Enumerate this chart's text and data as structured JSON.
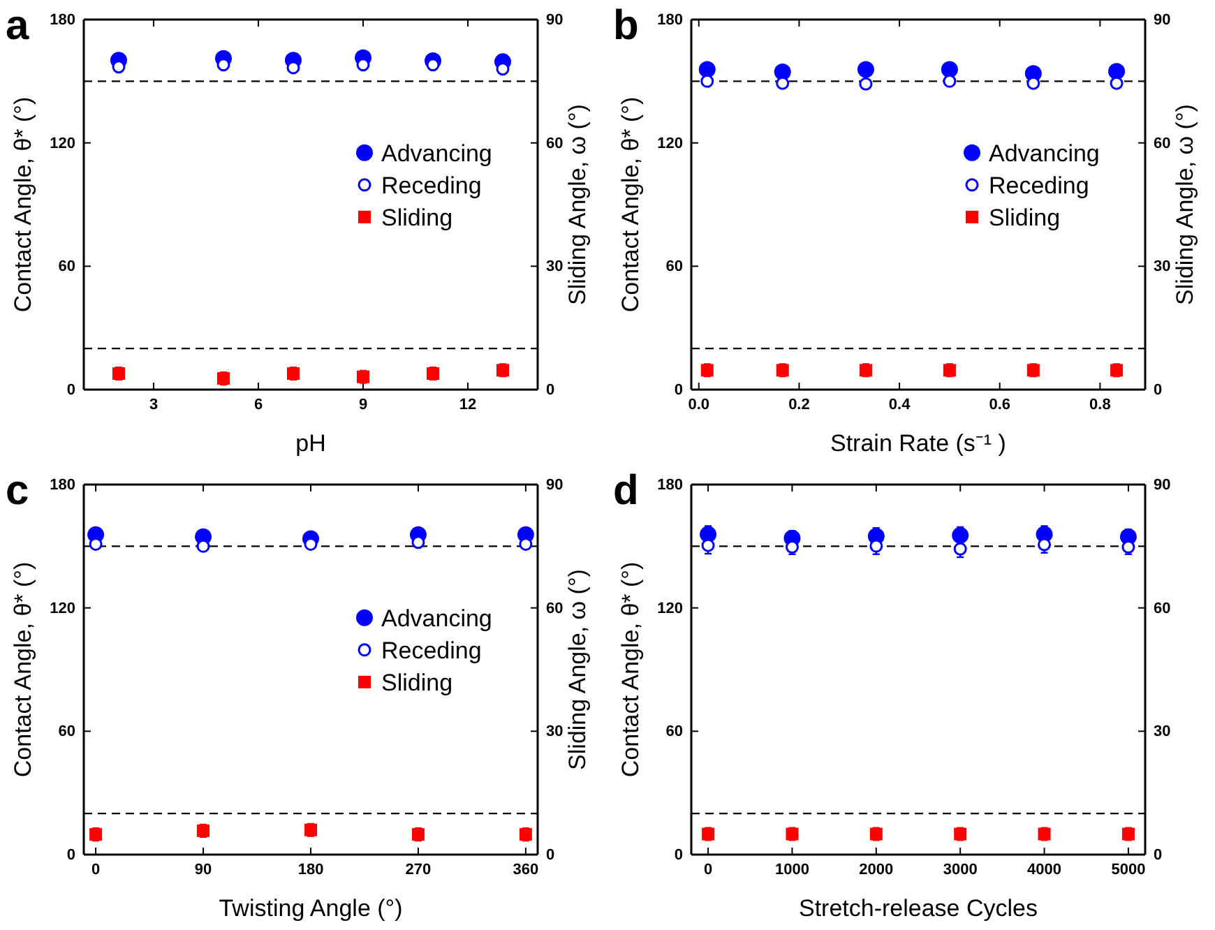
{
  "chart_data": [
    {
      "type": "scatter",
      "title": "a",
      "xlabel": "pH",
      "ylabel": "Contact Angle, θ* (°)",
      "y2label": "Sliding Angle, ω (°)",
      "xlim": [
        1,
        14
      ],
      "xticks": [
        3,
        6,
        9,
        12
      ],
      "ylim": [
        0,
        180
      ],
      "yticks": [
        0,
        60,
        120,
        180
      ],
      "y2lim": [
        0,
        90
      ],
      "y2ticks": [
        0,
        30,
        60,
        90
      ],
      "legend": "right",
      "x": [
        2,
        5,
        7,
        9,
        11,
        13
      ],
      "series": [
        {
          "name": "Advancing",
          "color": "#0000ff",
          "marker": "circle",
          "values": [
            160.2,
            161.1,
            160.2,
            161.4,
            160,
            159.5
          ]
        },
        {
          "name": "Receding",
          "color": "#0000ff",
          "marker": "circle-open",
          "values": [
            157,
            158,
            156.6,
            158,
            158,
            156
          ]
        },
        {
          "name": "Sliding",
          "color": "#ff0000",
          "marker": "square",
          "axis": "y2",
          "values": [
            3.9,
            2.7,
            3.9,
            3.1,
            3.9,
            4.7
          ],
          "errors": [
            1.5,
            1.5,
            1.5,
            1.5,
            1.5,
            1.5
          ]
        }
      ],
      "ref_lines": [
        {
          "axis": "y",
          "value": 150,
          "line_style": "dashed"
        },
        {
          "axis": "y2",
          "value": 10,
          "line_style": "dashed"
        }
      ]
    },
    {
      "type": "scatter",
      "title": "b",
      "xlabel": "Strain Rate (s⁻¹ )",
      "ylabel": "Contact Angle, θ* (°)",
      "y2label": "Sliding Angle, ω (°)",
      "xlim": [
        -0.015,
        0.89
      ],
      "xticks": [
        {
          "value": 0,
          "label": "0.0"
        },
        0.2,
        0.4,
        0.6,
        0.8
      ],
      "ylim": [
        0,
        180
      ],
      "yticks": [
        0,
        60,
        120,
        180
      ],
      "y2lim": [
        0,
        90
      ],
      "y2ticks": [
        0,
        30,
        60,
        90
      ],
      "legend": "right",
      "x": [
        0.0167,
        0.167,
        0.333,
        0.5,
        0.667,
        0.833
      ],
      "series": [
        {
          "name": "Advancing",
          "color": "#0000ff",
          "marker": "circle",
          "values": [
            155.7,
            154.5,
            155.7,
            155.7,
            153.8,
            154.8
          ]
        },
        {
          "name": "Receding",
          "color": "#0000ff",
          "marker": "circle-open",
          "values": [
            150,
            149,
            148.7,
            150,
            149,
            149
          ]
        },
        {
          "name": "Sliding",
          "color": "#ff0000",
          "marker": "square",
          "axis": "y2",
          "values": [
            4.7,
            4.7,
            4.7,
            4.7,
            4.7,
            4.7
          ],
          "errors": [
            1.5,
            1.5,
            1.5,
            1.5,
            1.5,
            1.5
          ]
        }
      ],
      "ref_lines": [
        {
          "axis": "y",
          "value": 150,
          "line_style": "dashed"
        },
        {
          "axis": "y2",
          "value": 10,
          "line_style": "dashed"
        }
      ]
    },
    {
      "type": "scatter",
      "title": "c",
      "xlabel": "Twisting Angle (°)",
      "ylabel": "Contact Angle, θ* (°)",
      "y2label": "Sliding Angle, ω (°)",
      "xlim": [
        -10,
        370
      ],
      "xticks": [
        0,
        90,
        180,
        270,
        360
      ],
      "ylim": [
        0,
        180
      ],
      "yticks": [
        0,
        60,
        120,
        180
      ],
      "y2lim": [
        0,
        90
      ],
      "y2ticks": [
        0,
        30,
        60,
        90
      ],
      "legend": "right",
      "x": [
        0,
        90,
        180,
        270,
        360
      ],
      "series": [
        {
          "name": "Advancing",
          "color": "#0000ff",
          "marker": "circle",
          "values": [
            155.6,
            154.6,
            153.7,
            155.6,
            155.6
          ]
        },
        {
          "name": "Receding",
          "color": "#0000ff",
          "marker": "circle-open",
          "values": [
            151,
            150,
            151,
            151.9,
            151
          ]
        },
        {
          "name": "Sliding",
          "color": "#ff0000",
          "marker": "square",
          "axis": "y2",
          "values": [
            4.9,
            5.8,
            6,
            4.9,
            4.9
          ],
          "errors": [
            1.5,
            1.5,
            1.5,
            1.5,
            1.5
          ]
        }
      ],
      "ref_lines": [
        {
          "axis": "y",
          "value": 150,
          "line_style": "dashed"
        },
        {
          "axis": "y2",
          "value": 10,
          "line_style": "dashed"
        }
      ]
    },
    {
      "type": "scatter",
      "title": "d",
      "xlabel": "Stretch-release Cycles",
      "ylabel": "Contact Angle, θ* (°)",
      "xlim": [
        -200,
        5200
      ],
      "xticks": [
        0,
        1000,
        2000,
        3000,
        4000,
        5000
      ],
      "ylim": [
        0,
        180
      ],
      "yticks": [
        0,
        60,
        120,
        180
      ],
      "y2lim": [
        0,
        90
      ],
      "y2ticks": [
        0,
        30,
        60,
        90
      ],
      "x": [
        0,
        1000,
        2000,
        3000,
        4000,
        5000
      ],
      "series": [
        {
          "color": "#0000ff",
          "marker": "circle",
          "values": [
            155.8,
            153.9,
            154.9,
            155.3,
            155.8,
            154.6
          ],
          "errors": [
            4,
            3.5,
            4,
            4,
            4,
            3.5
          ]
        },
        {
          "color": "#0000ff",
          "marker": "circle-open",
          "values": [
            150.4,
            149.6,
            150.1,
            148.7,
            150.8,
            149.6
          ],
          "errors": [
            4,
            3.5,
            4,
            4,
            4,
            3.5
          ]
        },
        {
          "color": "#ff0000",
          "marker": "square",
          "axis": "y2",
          "values": [
            5,
            5,
            5,
            5,
            5,
            5
          ],
          "errors": [
            1.5,
            1.5,
            1.5,
            1.5,
            1.5,
            1.5
          ]
        }
      ],
      "ref_lines": [
        {
          "axis": "y",
          "value": 150,
          "line_style": "dashed"
        },
        {
          "axis": "y2",
          "value": 10,
          "line_style": "dashed"
        }
      ]
    }
  ]
}
